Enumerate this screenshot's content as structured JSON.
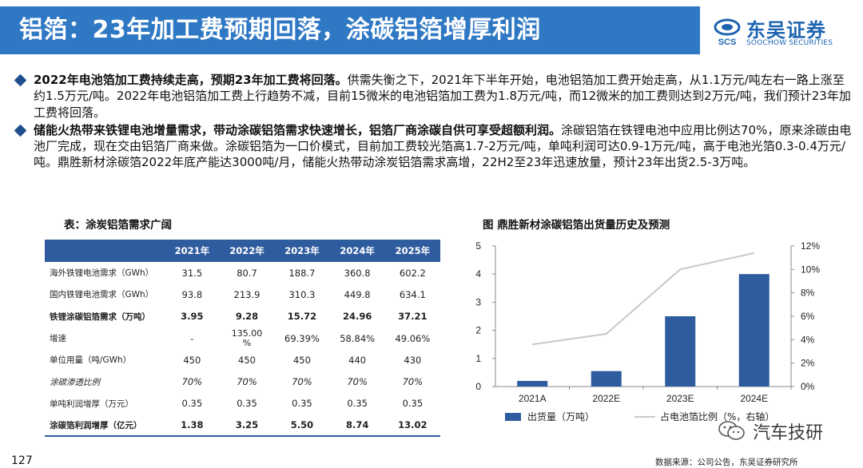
{
  "header": {
    "title": "铝箔：23年加工费预期回落，涂碳铝箔增厚利润",
    "logo_cn": "东吴证券",
    "logo_en": "SOOCHOW SECURITIES",
    "brand_color": "#2f78c4"
  },
  "bullets": [
    {
      "bold": "2022年电池箔加工费持续走高，预期23年加工费将回落。",
      "text": "供需失衡之下，2021年下半年开始，电池铝箔加工费开始走高，从1.1万元/吨左右一路上涨至约1.5万元/吨。2022年电池铝箔加工费上行趋势不减，目前15微米的电池铝箔加工费为1.8万元/吨，而12微米的加工费则达到2万元/吨，我们预计23年加工费将回落。"
    },
    {
      "bold": "储能火热带来铁锂电池增量需求，带动涂碳铝箔需求快速增长，铝箔厂商涂碳自供可享受超额利润。",
      "text": "涂碳铝箔在铁锂电池中应用比例达70%，原来涂碳由电池厂完成，现在交由铝箔厂商来做。涂碳铝箔为一口价模式，目前加工费较光箔高1.7-2万元/吨，单吨利润可达0.9-1万元/吨，高于电池光箔0.3-0.4万元/吨。鼎胜新材涂碳箔2022年底产能达3000吨/月，储能火热带动涂炭铝箔需求高增，22H2至23年迅速放量，预计23年出货2.5-3万吨。"
    }
  ],
  "table": {
    "title": "表：涂炭铝箔需求广阔",
    "header_color": "#2f5c9e",
    "columns": [
      "",
      "2021年",
      "2022年",
      "2023年",
      "2024年",
      "2025年"
    ],
    "rows": [
      {
        "cells": [
          "海外铁锂电池需求（GWh）",
          "31.5",
          "80.7",
          "188.7",
          "360.8",
          "602.2"
        ],
        "style": ""
      },
      {
        "cells": [
          "国内铁锂电池需求（GWh）",
          "93.8",
          "213.9",
          "310.3",
          "449.8",
          "634.1"
        ],
        "style": ""
      },
      {
        "cells": [
          "铁锂涂碳铝箔需求（万吨）",
          "3.95",
          "9.28",
          "15.72",
          "24.96",
          "37.21"
        ],
        "style": "bold"
      },
      {
        "cells": [
          "增速",
          "-",
          "135.00\n%",
          "69.39%",
          "58.84%",
          "49.06%"
        ],
        "style": ""
      },
      {
        "cells": [
          "单位用量（吨/GWh）",
          "450",
          "450",
          "450",
          "440",
          "430"
        ],
        "style": ""
      },
      {
        "cells": [
          "涂碳渗透比例",
          "70%",
          "70%",
          "70%",
          "70%",
          "70%"
        ],
        "style": "italic"
      },
      {
        "cells": [
          "单吨利润增厚（万元）",
          "0.35",
          "0.35",
          "0.35",
          "0.35",
          "0.35"
        ],
        "style": ""
      },
      {
        "cells": [
          "涂碳箔利润增厚（亿元）",
          "1.38",
          "3.25",
          "5.50",
          "8.74",
          "13.02"
        ],
        "style": "bold last"
      }
    ]
  },
  "chart_title": "图 鼎胜新材涂碳铝箔出货量历史及预测",
  "chart_data": {
    "type": "bar",
    "title": "图 鼎胜新材涂碳铝箔出货量历史及预测",
    "categories": [
      "2021A",
      "2022E",
      "2023E",
      "2024E"
    ],
    "series": [
      {
        "name": "出货量（万吨）",
        "type": "bar",
        "axis": "left",
        "values": [
          0.2,
          0.55,
          2.5,
          4.0
        ],
        "color": "#2f5c9e"
      },
      {
        "name": "占电池箔比例（%，右轴）",
        "type": "line",
        "axis": "right",
        "values": [
          3.6,
          4.5,
          10.0,
          11.4
        ],
        "color": "#c8c8c8"
      }
    ],
    "ylim": [
      0,
      5
    ],
    "yticks": [
      "0",
      "1",
      "2",
      "3",
      "4",
      "5"
    ],
    "y2lim": [
      0,
      12
    ],
    "y2ticks": [
      "0%",
      "2%",
      "4%",
      "6%",
      "8%",
      "10%",
      "12%"
    ],
    "legend_position": "bottom",
    "grid": false
  },
  "footer": {
    "page_number": "127",
    "source": "数据来源：公司公告，东吴证券研究所",
    "watermark": "汽车技研"
  }
}
